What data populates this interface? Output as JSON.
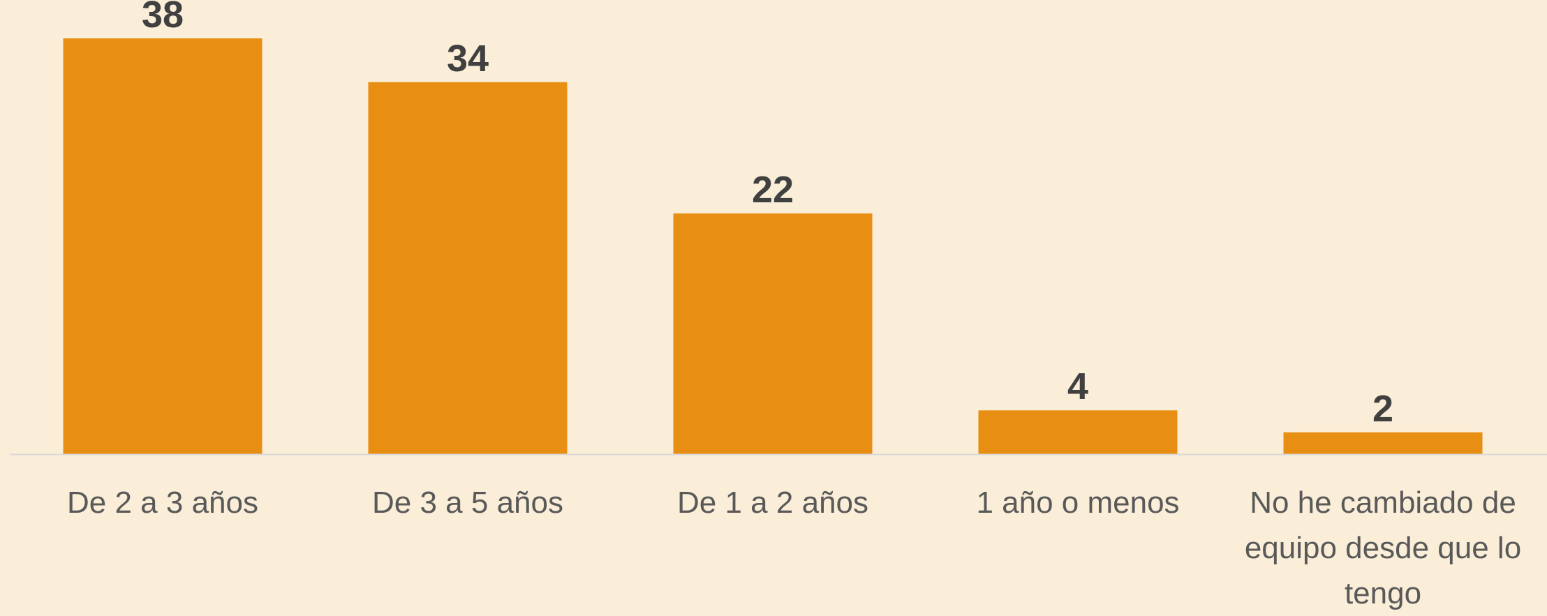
{
  "chart_data": {
    "type": "bar",
    "categories": [
      "De 2 a 3 años",
      "De 3 a 5 años",
      "De 1 a 2 años",
      "1 año o menos",
      "No he cambiado de equipo desde que lo tengo"
    ],
    "values": [
      38,
      34,
      22,
      4,
      2
    ],
    "color": "#e88f13"
  }
}
